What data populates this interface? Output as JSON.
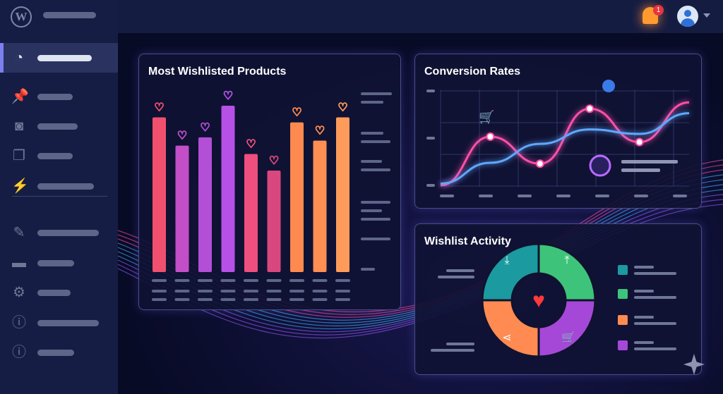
{
  "sidebar": {
    "items": [
      {
        "icon": "dashboard-icon",
        "active": true
      },
      {
        "icon": "pin-icon"
      },
      {
        "icon": "media-icon"
      },
      {
        "icon": "pages-icon"
      },
      {
        "icon": "plugin-icon"
      },
      {
        "icon": "brush-icon"
      },
      {
        "icon": "folder-icon"
      },
      {
        "icon": "gear-icon"
      },
      {
        "icon": "info-icon"
      },
      {
        "icon": "info-icon"
      }
    ]
  },
  "header": {
    "notification_count": "1"
  },
  "cards": {
    "wishlisted": {
      "title": "Most Wishlisted Products"
    },
    "conversion": {
      "title": "Conversion Rates"
    },
    "activity": {
      "title": "Wishlist Activity"
    }
  },
  "chart_data": [
    {
      "type": "bar",
      "title": "Most Wishlisted Products",
      "values": [
        93,
        76,
        81,
        100,
        71,
        61,
        90,
        79,
        93
      ],
      "colors": [
        "#f0506e",
        "#c24fc8",
        "#b24fd6",
        "#b650e6",
        "#ee4f7e",
        "#d8487e",
        "#ff8a4f",
        "#ff8f52",
        "#ff9b5a"
      ]
    },
    {
      "type": "line",
      "title": "Conversion Rates",
      "x": [
        0,
        1,
        2,
        3,
        4,
        5
      ],
      "series": [
        {
          "color": "#ff4fa8",
          "values": [
            0,
            0.54,
            0.24,
            0.85,
            0.48,
            0.92
          ]
        },
        {
          "color": "#5fa8ff",
          "values": [
            0.02,
            0.25,
            0.46,
            0.62,
            0.57,
            0.8
          ]
        }
      ]
    },
    {
      "type": "pie",
      "title": "Wishlist Activity",
      "values": [
        25,
        25,
        25,
        25
      ],
      "colors": [
        "#1b9aa0",
        "#3ec47a",
        "#a548d8",
        "#ff8b52"
      ],
      "icons": [
        "download-icon",
        "share-upload-icon",
        "cart-icon",
        "share-icon"
      ]
    }
  ]
}
